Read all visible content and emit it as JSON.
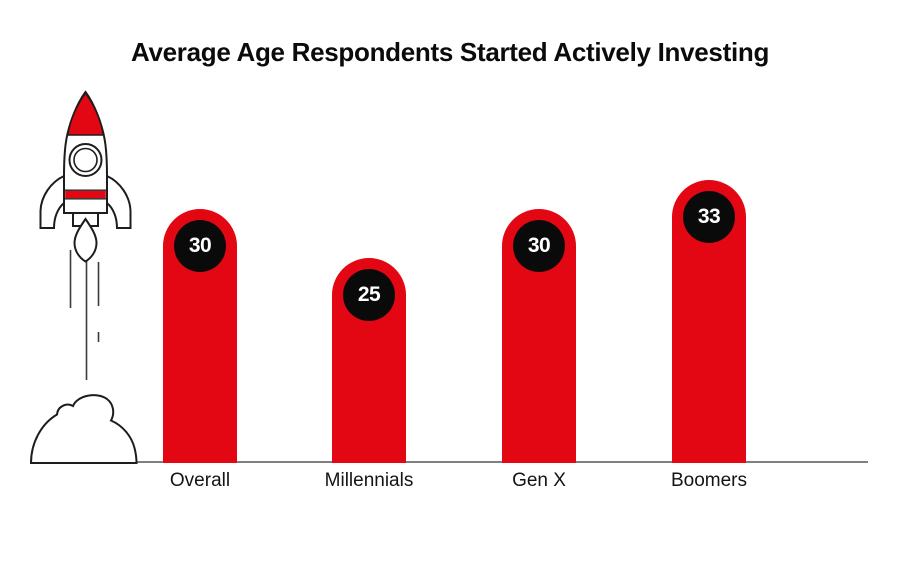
{
  "title": "Average Age Respondents Started Actively Investing",
  "chart_data": {
    "type": "bar",
    "title": "Average Age Respondents Started Actively Investing",
    "categories": [
      "Overall",
      "Millennials",
      "Gen X",
      "Boomers"
    ],
    "values": [
      30,
      25,
      30,
      33
    ],
    "data_labels": [
      "30",
      "25",
      "30",
      "33"
    ],
    "xlabel": "",
    "ylabel": "",
    "ylim": [
      0,
      40
    ],
    "grid": false,
    "legend": false,
    "notes": "Rounded-top red bars, value shown in black circle near top of each bar, gray baseline axis, decorative launching rocket illustration at left"
  },
  "colors": {
    "bar_red": "#e30613",
    "value_circle_black": "#0a0a0a",
    "value_text_white": "#ffffff",
    "baseline_gray": "#808080",
    "title_black": "#0b0b0b",
    "illustration_outline": "#1d1d1b"
  },
  "icons": {
    "rocket": "rocket-launch-icon",
    "cloud": "smoke-cloud-icon"
  }
}
